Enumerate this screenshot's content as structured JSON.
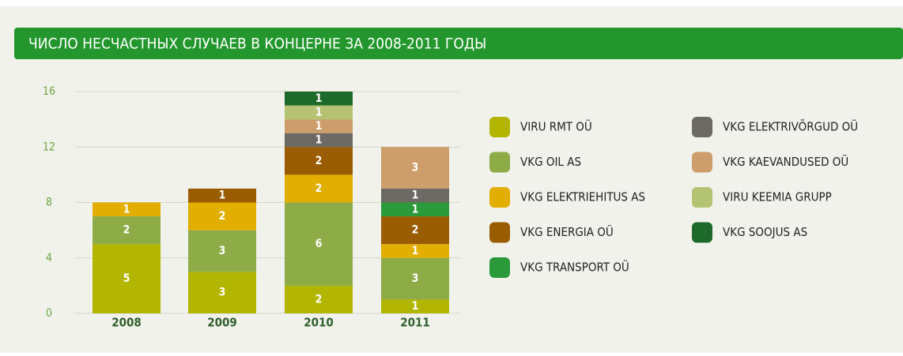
{
  "chart_data": {
    "type": "stacked_bar",
    "title": "ЧИСЛО НЕСЧАСТНЫХ СЛУЧАЕВ В КОНЦЕРНЕ ЗА 2008-2011 ГОДЫ",
    "categories": [
      "2008",
      "2009",
      "2010",
      "2011"
    ],
    "ylim": [
      0,
      16
    ],
    "yticks": [
      0,
      4,
      8,
      12,
      16
    ],
    "grid": true,
    "series": [
      {
        "name": "VIRU RMT OÜ",
        "color": "#b3b600",
        "values": [
          5,
          3,
          2,
          1
        ]
      },
      {
        "name": "VKG OIL AS",
        "color": "#8dab47",
        "values": [
          2,
          3,
          6,
          3
        ]
      },
      {
        "name": "VKG ELEKTRIEHITUS AS",
        "color": "#e2ae00",
        "values": [
          1,
          2,
          2,
          1
        ]
      },
      {
        "name": "VKG ENERGIA OÜ",
        "color": "#995c00",
        "values": [
          null,
          1,
          2,
          2
        ]
      },
      {
        "name": "VKG TRANSPORT OÜ",
        "color": "#2a9a3a",
        "values": [
          null,
          null,
          null,
          1
        ]
      },
      {
        "name": "VKG ELEKTRIVÕRGUD OÜ",
        "color": "#6d6964",
        "values": [
          null,
          null,
          1,
          1
        ]
      },
      {
        "name": "VKG KAEVANDUSED OÜ",
        "color": "#cd9d6c",
        "values": [
          null,
          null,
          1,
          3
        ]
      },
      {
        "name": "VIRU KEEMIA GRUPP",
        "color": "#b3c371",
        "values": [
          null,
          null,
          1,
          null
        ]
      },
      {
        "name": "VKG SOOJUS AS",
        "color": "#1e6a2a",
        "values": [
          null,
          null,
          1,
          null
        ]
      }
    ]
  }
}
